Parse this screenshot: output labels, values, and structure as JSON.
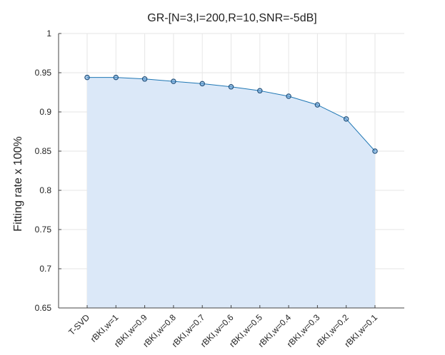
{
  "chart_data": {
    "type": "area",
    "title": "GR-[N=3,I=200,R=10,SNR=-5dB]",
    "xlabel": "",
    "ylabel": "Fitting rate x 100%",
    "categories": [
      "T-SVD",
      "rBKI,w=1",
      "rBKI,w=0.9",
      "rBKI,w=0.8",
      "rBKI,w=0.7",
      "rBKI,w=0.6",
      "rBKI,w=0.5",
      "rBKI,w=0.4",
      "rBKI,w=0.3",
      "rBKI,w=0.2",
      "rBKI,w=0.1"
    ],
    "values": [
      0.944,
      0.944,
      0.942,
      0.939,
      0.936,
      0.932,
      0.927,
      0.92,
      0.909,
      0.891,
      0.85
    ],
    "ylim": [
      0.65,
      1.0
    ],
    "yticks": [
      0.65,
      0.7,
      0.75,
      0.8,
      0.85,
      0.9,
      0.95,
      1
    ],
    "ytick_labels": [
      "0.65",
      "0.7",
      "0.75",
      "0.8",
      "0.85",
      "0.9",
      "0.95",
      "1"
    ],
    "grid": true,
    "colors": {
      "line": "#1f77b4",
      "fill": "#dbe8f8",
      "marker_edge": "#1f4e79",
      "marker_face": "#5b9bd5"
    }
  }
}
